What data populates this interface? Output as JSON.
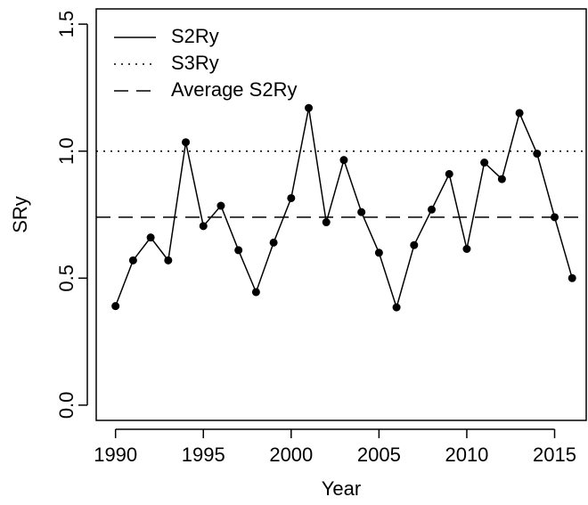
{
  "chart_data": {
    "type": "line",
    "x_label": "Year",
    "y_label": "SRy",
    "x": [
      1990,
      1991,
      1992,
      1993,
      1994,
      1995,
      1996,
      1997,
      1998,
      1999,
      2000,
      2001,
      2002,
      2003,
      2004,
      2005,
      2006,
      2007,
      2008,
      2009,
      2010,
      2011,
      2012,
      2013,
      2014,
      2015,
      2016
    ],
    "series": [
      {
        "name": "S2Ry",
        "color": "#000000",
        "line_style": "solid",
        "values": [
          0.39,
          0.57,
          0.66,
          0.57,
          1.035,
          0.705,
          0.785,
          0.61,
          0.445,
          0.64,
          0.815,
          1.17,
          0.72,
          0.965,
          0.76,
          0.6,
          0.385,
          0.63,
          0.77,
          0.91,
          0.615,
          0.955,
          0.89,
          1.15,
          0.99,
          0.74,
          0.5
        ]
      }
    ],
    "reference_lines": [
      {
        "name": "S3Ry",
        "value": 1.0,
        "color": "#000000",
        "line_style": "dotted"
      },
      {
        "name": "Average S2Ry",
        "value": 0.74,
        "color": "#000000",
        "line_style": "dashed"
      }
    ],
    "xlim": [
      1988.9,
      2016.8
    ],
    "ylim": [
      -0.06,
      1.56
    ],
    "xticks": [
      1990,
      1995,
      2000,
      2005,
      2010,
      2015
    ],
    "yticks": [
      {
        "value": 0,
        "label": "0.0"
      },
      {
        "value": 0.5,
        "label": "0.5"
      },
      {
        "value": 1,
        "label": "1.0"
      },
      {
        "value": 1.5,
        "label": "1.5"
      }
    ],
    "legend_position": "top-left",
    "grid": false
  }
}
